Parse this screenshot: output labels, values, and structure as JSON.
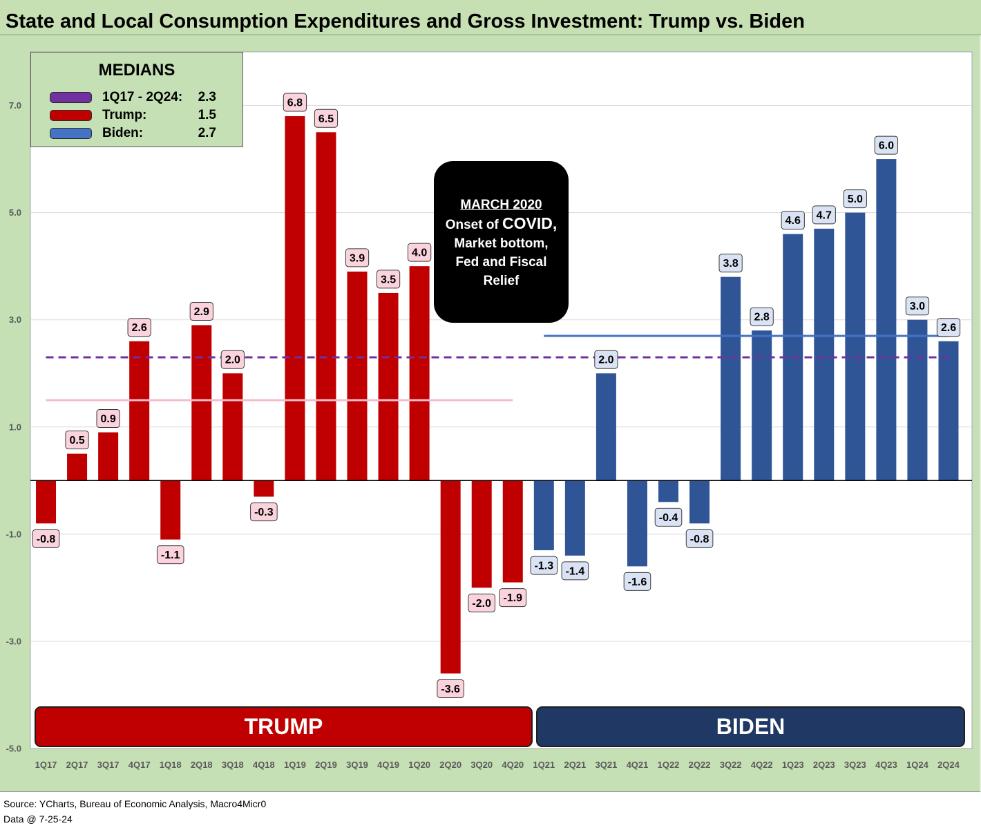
{
  "chart_data": {
    "type": "bar",
    "title": "State and Local Consumption Expenditures and Gross Investment: Trump vs. Biden",
    "categories": [
      "1Q17",
      "2Q17",
      "3Q17",
      "4Q17",
      "1Q18",
      "2Q18",
      "3Q18",
      "4Q18",
      "1Q19",
      "2Q19",
      "3Q19",
      "4Q19",
      "1Q20",
      "2Q20",
      "3Q20",
      "4Q20",
      "1Q21",
      "2Q21",
      "3Q21",
      "4Q21",
      "1Q22",
      "2Q22",
      "3Q22",
      "4Q22",
      "1Q23",
      "2Q23",
      "3Q23",
      "4Q23",
      "1Q24",
      "2Q24"
    ],
    "series": [
      {
        "name": "TRUMP",
        "color": "#c00000",
        "label_fill": "#fbd3dd",
        "banner_fill": "#c00000",
        "values": [
          -0.8,
          0.5,
          0.9,
          2.6,
          -1.1,
          2.9,
          2.0,
          -0.3,
          6.8,
          6.5,
          3.9,
          3.5,
          4.0,
          -3.6,
          -2.0,
          -1.9,
          null,
          null,
          null,
          null,
          null,
          null,
          null,
          null,
          null,
          null,
          null,
          null,
          null,
          null
        ],
        "median": {
          "label": "Trump:",
          "value": 1.5,
          "swatch": "#c00000",
          "line_color": "#f5bccb"
        }
      },
      {
        "name": "BIDEN",
        "color": "#2f5597",
        "label_fill": "#dae3f3",
        "banner_fill": "#203864",
        "values": [
          null,
          null,
          null,
          null,
          null,
          null,
          null,
          null,
          null,
          null,
          null,
          null,
          null,
          null,
          null,
          null,
          -1.3,
          -1.4,
          2.0,
          -1.6,
          -0.4,
          -0.8,
          3.8,
          2.8,
          4.6,
          4.7,
          5.0,
          6.0,
          3.0,
          2.6
        ],
        "median": {
          "label": "Biden:",
          "value": 2.7,
          "swatch": "#4472c4",
          "line_color": "#4472c4"
        }
      }
    ],
    "overall_median": {
      "label": "1Q17 - 2Q24:",
      "value": 2.3,
      "swatch": "#7030a0",
      "line_color": "#7030a0"
    },
    "legend": {
      "title": "MEDIANS",
      "position": "top-left"
    },
    "annotation": {
      "heading": "MARCH 2020",
      "line1": "Onset of",
      "line1_emphasis": "COVID,",
      "line2": "Market bottom,",
      "line3": "Fed and Fiscal",
      "line4": "Relief"
    },
    "y_ticks": [
      7,
      5,
      3,
      1,
      -1,
      -3,
      -5
    ],
    "ylim": [
      -5,
      8
    ],
    "grid": true
  },
  "footer": {
    "source": "Source: YCharts, Bureau of Economic Analysis, Macro4Micr0",
    "date": "Data @ 7-25-24"
  }
}
